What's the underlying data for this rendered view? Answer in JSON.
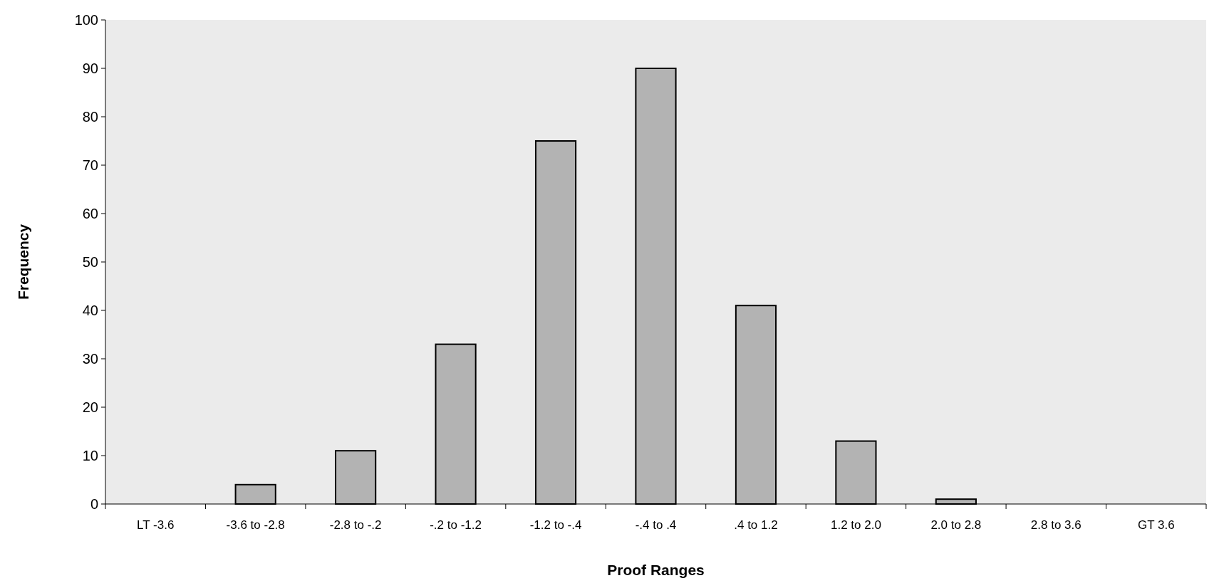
{
  "chart_data": {
    "type": "bar",
    "xlabel": "Proof Ranges",
    "ylabel": "Frequency",
    "categories": [
      "LT -3.6",
      "-3.6 to -2.8",
      "-2.8 to -.2",
      "-.2 to -1.2",
      "-1.2 to -.4",
      "-.4 to .4",
      ".4 to 1.2",
      "1.2 to 2.0",
      "2.0 to 2.8",
      "2.8 to 3.6",
      "GT 3.6"
    ],
    "values": [
      0,
      4,
      11,
      33,
      75,
      90,
      41,
      13,
      1,
      0,
      0
    ],
    "color": "#b3b3b3",
    "ylim": [
      0,
      100
    ],
    "yticks": [
      0,
      10,
      20,
      30,
      40,
      50,
      60,
      70,
      80,
      90,
      100
    ],
    "grid": false
  }
}
